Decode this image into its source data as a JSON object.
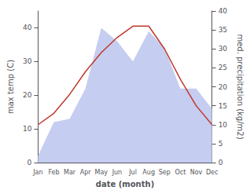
{
  "chart_data": {
    "type": "line",
    "categories": [
      "Jan",
      "Feb",
      "Mar",
      "Apr",
      "May",
      "Jun",
      "Jul",
      "Aug",
      "Sep",
      "Oct",
      "Nov",
      "Dec"
    ],
    "series": [
      {
        "type": "area",
        "color": "#c5cdf0",
        "values": [
          2,
          12,
          13,
          22,
          40,
          36,
          30,
          39,
          34,
          22,
          22,
          16
        ]
      },
      {
        "type": "line",
        "color": "#c0392b",
        "axis": "y2",
        "values": [
          10,
          13,
          18,
          24,
          29,
          33,
          36,
          36,
          30,
          22,
          15,
          10
        ]
      }
    ],
    "xlabel": "date (month)",
    "ylabel": "max temp (C)",
    "y2label": "med. precipitation (kg/m2)",
    "ylim": [
      0,
      45
    ],
    "yticks": [
      0,
      10,
      20,
      30,
      40
    ],
    "y2lim": [
      0,
      40
    ],
    "y2ticks": [
      0,
      5,
      10,
      15,
      20,
      25,
      30,
      35,
      40
    ],
    "grid": false
  }
}
